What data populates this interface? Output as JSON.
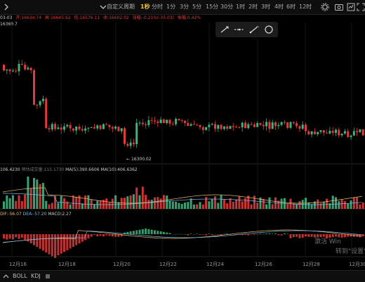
{
  "toolbar": {
    "expand_icon": "chevron-right",
    "menu_icon": "chevron-down",
    "timeframes": [
      {
        "label": "自定义周期",
        "dropdown": true
      },
      {
        "label": "1秒",
        "active": true
      },
      {
        "label": "分时"
      },
      {
        "label": "1分"
      },
      {
        "label": "3分"
      },
      {
        "label": "5分"
      },
      {
        "label": "15分"
      },
      {
        "label": "30分"
      },
      {
        "label": "1时"
      },
      {
        "label": "2时"
      },
      {
        "label": "3时"
      },
      {
        "label": "4时"
      },
      {
        "label": "6时"
      },
      {
        "label": "12时"
      }
    ],
    "right_icons": [
      "settings-icon",
      "screenshot-icon",
      "indicators-icon",
      "expand-icon"
    ]
  },
  "info_bar": {
    "date": "03-03",
    "open": "开:16634.74",
    "high": "高:16645.62",
    "low": "低:16576.11",
    "close": "收:16602.02",
    "change": "涨幅:-0.21%(-35.03)",
    "amplitude": "振幅:0.42%"
  },
  "price_label_top": "16369.7",
  "low_marker": "16300.02",
  "draw_tools": [
    "line-tool-icon",
    "ray-tool-icon",
    "trend-tool-icon",
    "circle-tool-icon"
  ],
  "volume_panel": {
    "vol": "106.4230",
    "predict": "预估成交量:115.1730",
    "ma5": "MA(5):390.6606",
    "ma10": "MA(10):406.6362"
  },
  "macd_panel": {
    "dif": "DIF:-56.07",
    "dea": "DEA:-57.20",
    "macd": "MACD:2.27"
  },
  "x_axis": [
    "12月16",
    "12月18",
    "12月20",
    "12月22",
    "12月24",
    "12月26",
    "12月28",
    "12月30"
  ],
  "bottom_tabs": [
    "BOLL",
    "KDJ"
  ],
  "watermark": {
    "line1": "激活 Win",
    "line2": "转到\"设置\"以"
  },
  "colors": {
    "up": "#3fb37e",
    "down": "#e23a3a",
    "accent": "#f4c53b",
    "dif": "#e8c070",
    "dea": "#7fb8e6"
  },
  "chart_data": {
    "type": "candlestick",
    "note": "Candlestick price chart with volume histogram and MACD histogram"
  }
}
